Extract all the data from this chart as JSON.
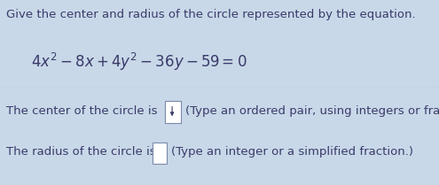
{
  "title_line": "Give the center and radius of the circle represented by the equation.",
  "line1_prefix": "The center of the circle is",
  "line1_suffix": "(Type an ordered pair, using integers or fraction",
  "line2_prefix": "The radius of the circle is",
  "line2_suffix": "(Type an integer or a simplified fraction.)",
  "bg_top": "#c8d8e8",
  "bg_bottom": "#e8edf2",
  "divider_color": "#8899aa",
  "font_size_title": 9.5,
  "font_size_eq": 11,
  "font_size_body": 9.5,
  "text_color": "#3a3a6a",
  "box_stroke": "#7a8aaa",
  "fig_width": 4.95,
  "fig_height": 2.09,
  "dpi": 100
}
